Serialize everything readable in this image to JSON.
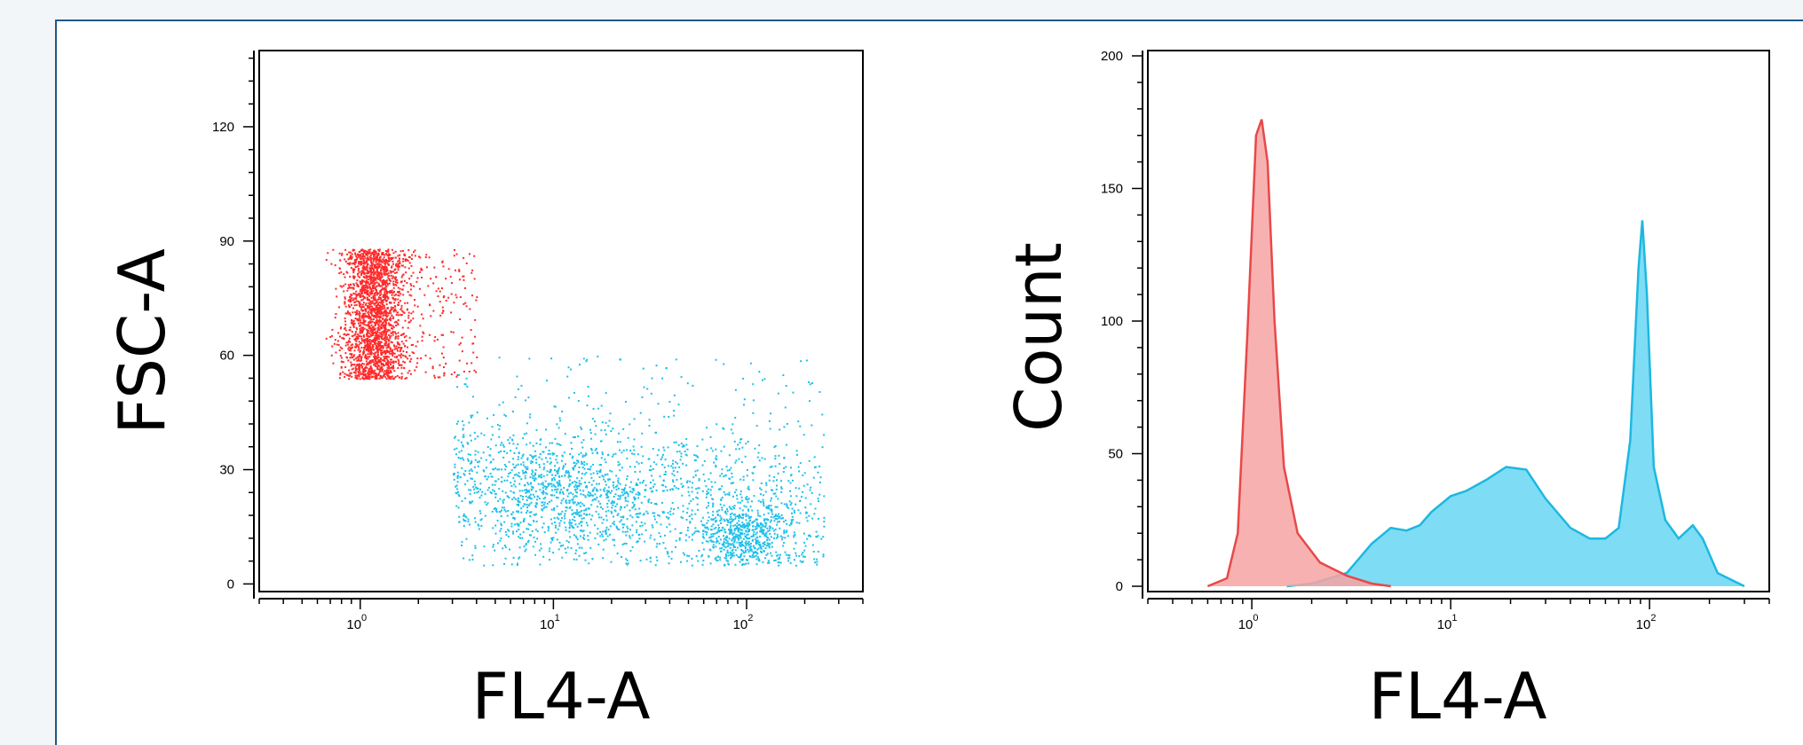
{
  "chart_data": [
    {
      "type": "scatter",
      "xlabel": "FL4-A",
      "ylabel": "FSC-A",
      "x_scale": "log",
      "xlim": [
        0.3,
        400
      ],
      "ylim": [
        -2,
        140
      ],
      "x_ticks": [
        {
          "value": 1,
          "base": "10",
          "exp": "0"
        },
        {
          "value": 10,
          "base": "10",
          "exp": "1"
        },
        {
          "value": 100,
          "base": "10",
          "exp": "2"
        }
      ],
      "y_ticks": [
        0,
        30,
        60,
        90,
        120
      ],
      "series": [
        {
          "color": "#ff2a2a",
          "cluster": {
            "x_center": 1.15,
            "x_spread_decades": 0.08,
            "y_min": 54,
            "y_max": 88,
            "count": 2300,
            "tail_to_x": 4.0
          }
        },
        {
          "color": "#1ec0ea",
          "cluster": {
            "x_min": 3,
            "x_max": 250,
            "y_min": 5,
            "y_max": 60,
            "dense_centers": [
              {
                "x": 12,
                "y": 22
              },
              {
                "x": 95,
                "y": 13
              }
            ],
            "count": 2600
          }
        }
      ]
    },
    {
      "type": "area",
      "xlabel": "FL4-A",
      "ylabel": "Count",
      "x_scale": "log",
      "xlim": [
        0.3,
        400
      ],
      "ylim": [
        -2,
        202
      ],
      "x_ticks": [
        {
          "value": 1,
          "base": "10",
          "exp": "0"
        },
        {
          "value": 10,
          "base": "10",
          "exp": "1"
        },
        {
          "value": 100,
          "base": "10",
          "exp": "2"
        }
      ],
      "y_ticks": [
        0,
        50,
        100,
        150,
        200
      ],
      "series": [
        {
          "color": "#e84848",
          "fill": "#f7a3a3",
          "points": [
            [
              0.6,
              0
            ],
            [
              0.75,
              3
            ],
            [
              0.85,
              20
            ],
            [
              0.95,
              95
            ],
            [
              1.05,
              170
            ],
            [
              1.12,
              176
            ],
            [
              1.2,
              160
            ],
            [
              1.3,
              100
            ],
            [
              1.45,
              45
            ],
            [
              1.7,
              20
            ],
            [
              2.2,
              9
            ],
            [
              3,
              4
            ],
            [
              4,
              1
            ],
            [
              5,
              0
            ]
          ]
        },
        {
          "color": "#1cb8e0",
          "fill": "#7fdcf5",
          "points": [
            [
              1.5,
              0
            ],
            [
              2,
              1
            ],
            [
              3,
              5
            ],
            [
              4,
              16
            ],
            [
              5,
              22
            ],
            [
              6,
              21
            ],
            [
              7,
              23
            ],
            [
              8,
              28
            ],
            [
              10,
              34
            ],
            [
              12,
              36
            ],
            [
              15,
              40
            ],
            [
              19,
              45
            ],
            [
              24,
              44
            ],
            [
              30,
              33
            ],
            [
              40,
              22
            ],
            [
              50,
              18
            ],
            [
              60,
              18
            ],
            [
              70,
              22
            ],
            [
              80,
              55
            ],
            [
              88,
              120
            ],
            [
              92,
              138
            ],
            [
              97,
              110
            ],
            [
              105,
              45
            ],
            [
              120,
              25
            ],
            [
              140,
              18
            ],
            [
              165,
              23
            ],
            [
              185,
              18
            ],
            [
              220,
              5
            ],
            [
              300,
              0
            ]
          ]
        }
      ]
    }
  ]
}
